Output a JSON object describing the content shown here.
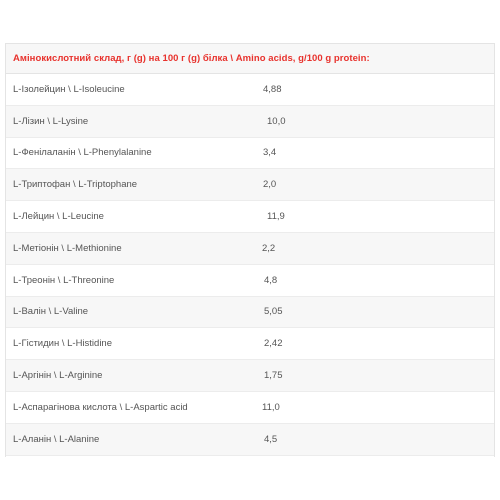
{
  "table": {
    "header": "Амінокислотний склад, г (g) на 100 г (g) білка \\ Amino acids, g/100 g protein:",
    "rows": [
      {
        "name": "L-Ізолейцин \\ L-Isoleucine",
        "value": "4,88"
      },
      {
        "name": "L-Лізин \\ L-Lysine",
        "value": "10,0"
      },
      {
        "name": "L-Фенілаланін \\ L-Phenylalanine",
        "value": "3,4"
      },
      {
        "name": "L-Триптофан \\ L-Triptophane",
        "value": "2,0"
      },
      {
        "name": "L-Лейцин \\ L-Leucine",
        "value": "11,9"
      },
      {
        "name": "L-Метіонін \\ L-Methionine",
        "value": "2,2"
      },
      {
        "name": "L-Треонін \\ L-Threonine",
        "value": "4,8"
      },
      {
        "name": "L-Валін \\ L-Valine",
        "value": "5,05"
      },
      {
        "name": "L-Гістидин \\ L-Histidine",
        "value": "2,42"
      },
      {
        "name": "L-Аргінін \\ L-Arginine",
        "value": "1,75"
      },
      {
        "name": "L-Аспарагінова кислота \\ L-Aspartic acid",
        "value": "11,0"
      },
      {
        "name": "L-Аланін \\ L-Alanine",
        "value": "4,5"
      }
    ]
  },
  "colors": {
    "header_text": "#e8322d",
    "stripe": "#f7f7f7",
    "body_text": "#555555"
  }
}
